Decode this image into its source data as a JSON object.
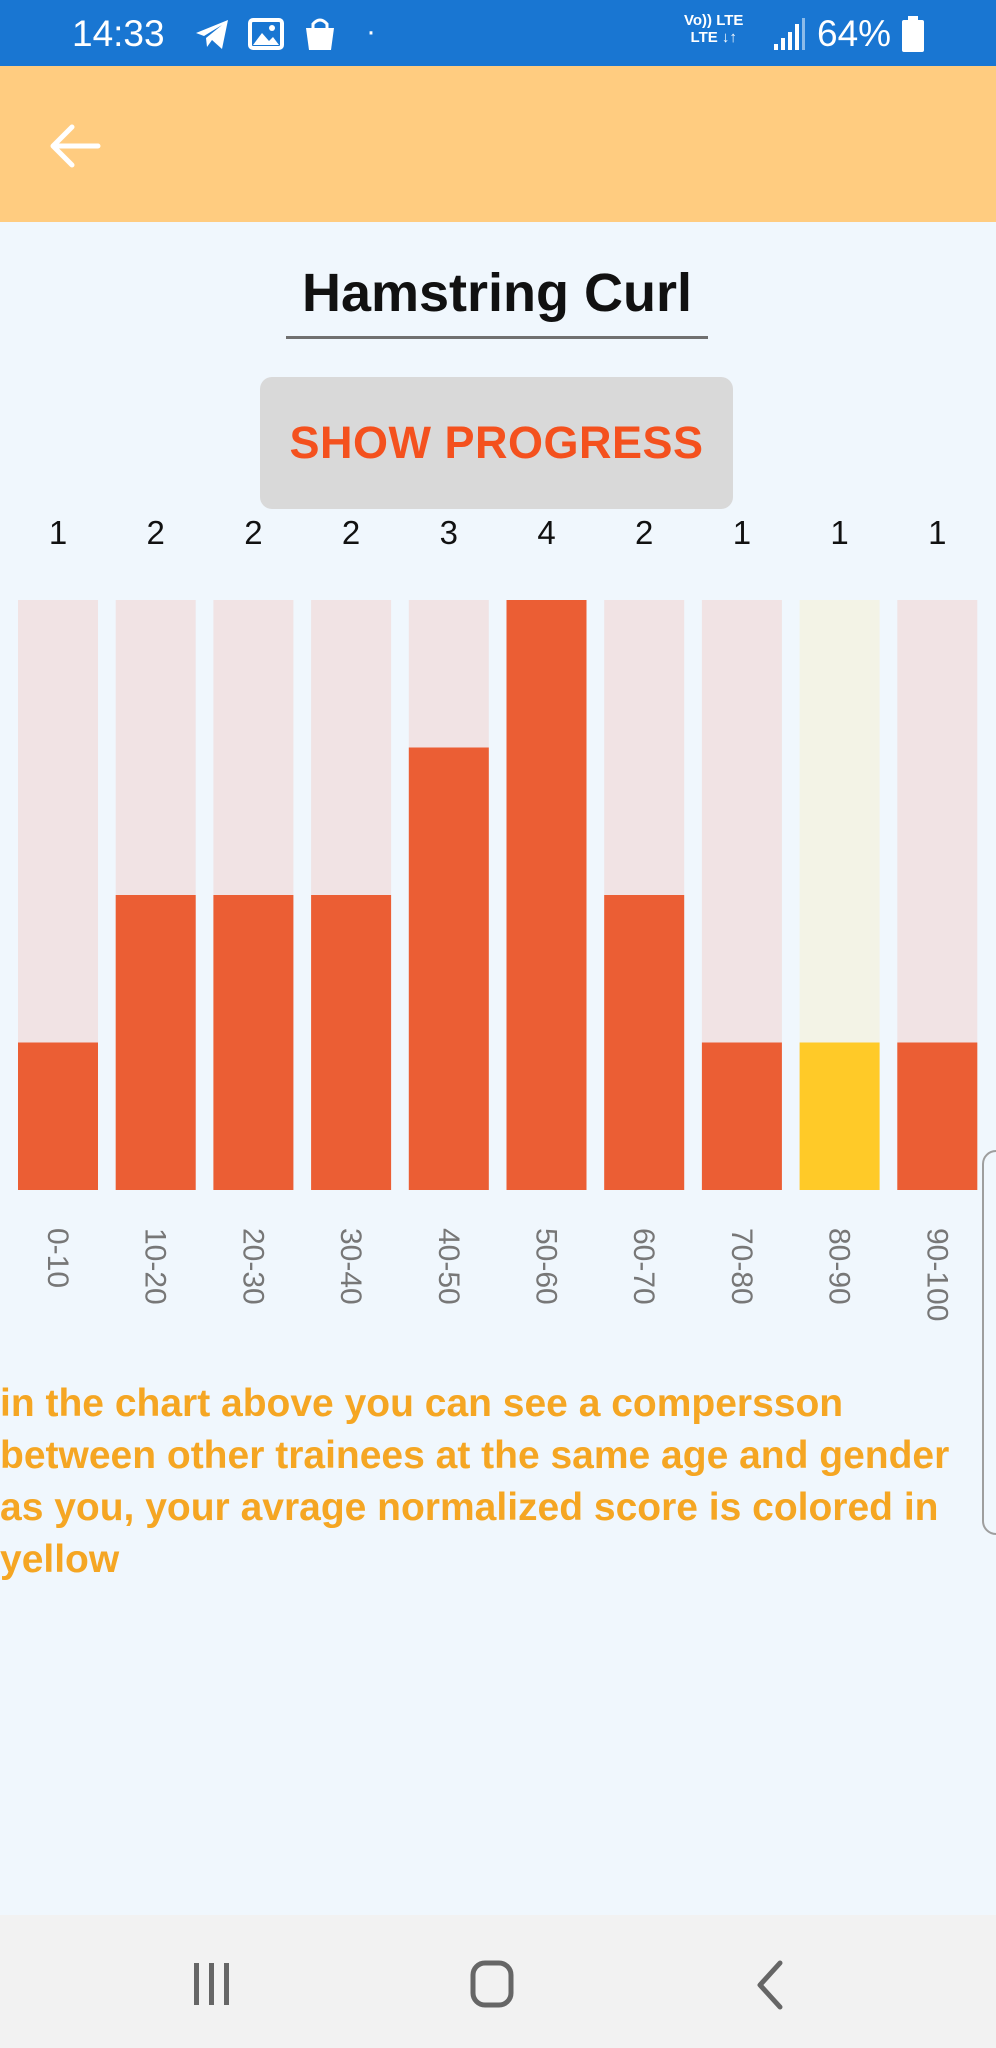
{
  "status_bar": {
    "time": "14:33",
    "network_top": "Vo)) LTE",
    "network_bottom": "LTE ↓↑",
    "battery": "64%",
    "icons": [
      "telegram-icon",
      "gallery-icon",
      "shopping-bag-icon",
      "dot-icon",
      "signal-icon",
      "battery-icon"
    ]
  },
  "app_bar": {
    "back_icon": "arrow-left-icon",
    "color": "#ffcc80"
  },
  "exercise": {
    "title": "Hamstring Curl"
  },
  "show_progress_button": {
    "label": "SHOW PROGRESS"
  },
  "chart_data": {
    "type": "bar",
    "categories": [
      "0-10",
      "10-20",
      "20-30",
      "30-40",
      "40-50",
      "50-60",
      "60-70",
      "70-80",
      "80-90",
      "90-100"
    ],
    "values": [
      1,
      2,
      2,
      2,
      3,
      4,
      2,
      1,
      1,
      1
    ],
    "highlight_index": 8,
    "ylim": [
      0,
      4
    ],
    "colors": {
      "bar": "#eb5e34",
      "track": "#f1e3e4",
      "highlight_bar": "#ffca28",
      "highlight_track": "#f3f3e6"
    }
  },
  "description": {
    "text": "in the chart above you can see a compersson between other trainees at the same age and gender as you, your avrage normalized score is colored in yellow"
  },
  "nav_bar": {
    "buttons": [
      "recent-apps-icon",
      "home-icon",
      "back-icon"
    ]
  }
}
